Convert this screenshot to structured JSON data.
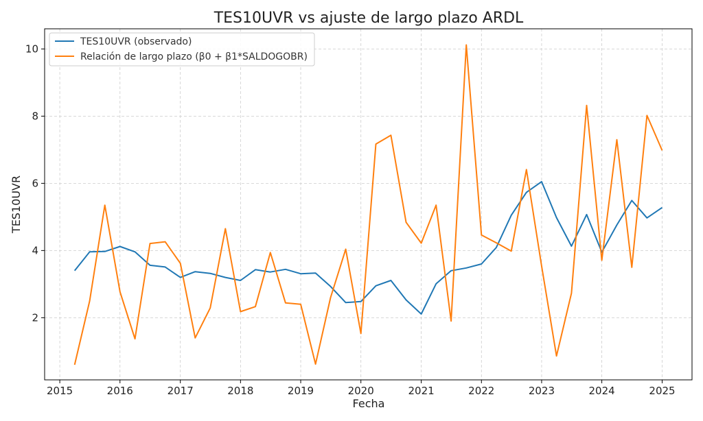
{
  "chart_data": {
    "type": "line",
    "title": "TES10UVR vs ajuste de largo plazo ARDL",
    "xlabel": "Fecha",
    "ylabel": "TES10UVR",
    "x": [
      "2015-04-01",
      "2015-07-01",
      "2015-10-01",
      "2016-01-01",
      "2016-04-01",
      "2016-07-01",
      "2016-10-01",
      "2017-01-01",
      "2017-04-01",
      "2017-07-01",
      "2017-10-01",
      "2018-01-01",
      "2018-04-01",
      "2018-07-01",
      "2018-10-01",
      "2019-01-01",
      "2019-04-01",
      "2019-07-01",
      "2019-10-01",
      "2020-01-01",
      "2020-04-01",
      "2020-07-01",
      "2020-10-01",
      "2021-01-01",
      "2021-04-01",
      "2021-07-01",
      "2021-10-01",
      "2022-01-01",
      "2022-04-01",
      "2022-07-01",
      "2022-10-01",
      "2023-01-01",
      "2023-04-01",
      "2023-07-01",
      "2023-10-01",
      "2024-01-01",
      "2024-04-01",
      "2024-07-01",
      "2024-10-01",
      "2025-01-01"
    ],
    "series": [
      {
        "name": "TES10UVR (observado)",
        "color": "#1f77b4",
        "values": [
          3.4,
          3.96,
          3.97,
          4.12,
          3.96,
          3.56,
          3.51,
          3.2,
          3.37,
          3.32,
          3.2,
          3.11,
          3.43,
          3.36,
          3.44,
          3.31,
          3.33,
          2.93,
          2.45,
          2.48,
          2.95,
          3.11,
          2.53,
          2.11,
          3.01,
          3.4,
          3.48,
          3.6,
          4.09,
          5.05,
          5.73,
          6.05,
          4.98,
          4.13,
          5.07,
          3.95,
          4.76,
          5.49,
          4.97,
          5.28
        ]
      },
      {
        "name": "Relación de largo plazo (β0 + β1*SALDOGOBR)",
        "color": "#ff7f0e",
        "values": [
          0.6,
          2.5,
          5.35,
          2.77,
          1.37,
          4.21,
          4.26,
          3.62,
          1.4,
          2.29,
          4.65,
          2.18,
          2.33,
          3.94,
          2.44,
          2.4,
          0.62,
          2.6,
          4.04,
          1.53,
          7.17,
          7.43,
          4.84,
          4.22,
          5.35,
          1.9,
          10.12,
          4.46,
          4.23,
          3.98,
          6.41,
          3.54,
          0.86,
          2.73,
          8.32,
          3.71,
          7.3,
          3.5,
          8.02,
          6.98
        ]
      }
    ],
    "xlim": [
      "2014-10-01",
      "2025-07-01"
    ],
    "ylim": [
      0.15,
      10.6
    ],
    "xticks": [
      "2015",
      "2016",
      "2017",
      "2018",
      "2019",
      "2020",
      "2021",
      "2022",
      "2023",
      "2024",
      "2025"
    ],
    "yticks": [
      2,
      4,
      6,
      8,
      10
    ],
    "grid": true,
    "legend_position": "top-left"
  }
}
